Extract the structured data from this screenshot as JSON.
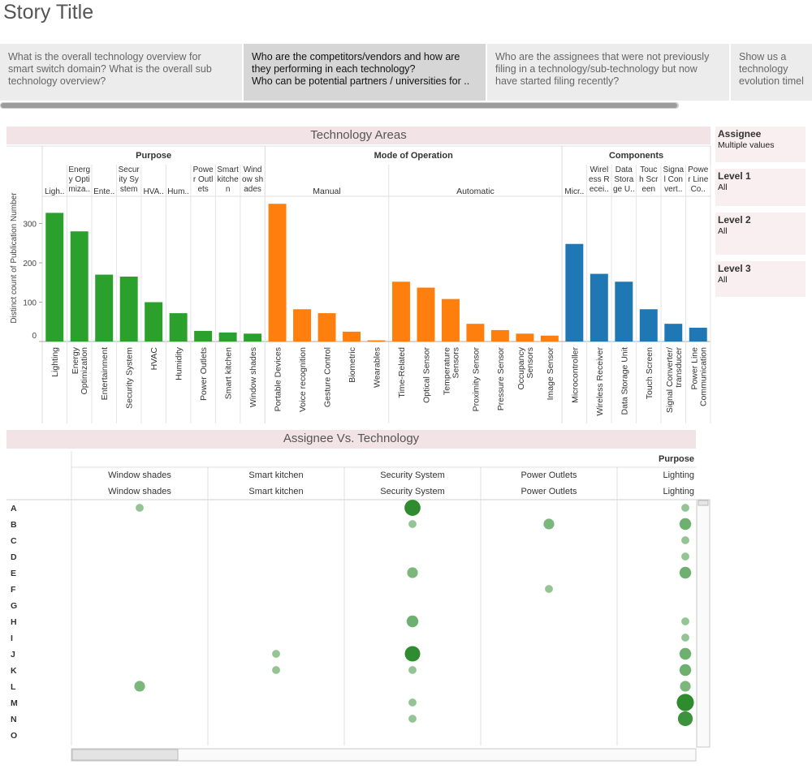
{
  "story": {
    "title": "Story Title"
  },
  "tabs": [
    {
      "lines": [
        "What is the overall technology overview for",
        "smart switch domain? What is the overall sub",
        "technology overview?"
      ],
      "active": false
    },
    {
      "lines": [
        "Who are the competitors/vendors and how are",
        "they performing in each technology?",
        "Who can be potential partners / universities for .."
      ],
      "active": true
    },
    {
      "lines": [
        "Who are the assignees that were not previously",
        "filing in a technology/sub-technology but now",
        "have started filing recently?"
      ],
      "active": false
    },
    {
      "lines": [
        "Show us a",
        "technology",
        "evolution timel.."
      ],
      "active": false
    }
  ],
  "filters": [
    {
      "title": "Assignee",
      "value": "Multiple values"
    },
    {
      "title": "Level 1",
      "value": "All"
    },
    {
      "title": "Level 2",
      "value": "All"
    },
    {
      "title": "Level 3",
      "value": "All"
    }
  ],
  "tech_chart": {
    "section_title": "Technology Areas",
    "ylabel": "Distinct count of Publication Number",
    "yticks": [
      0,
      100,
      200,
      300
    ],
    "colors": {
      "Purpose": "#2ca02c",
      "Mode of Operation": "#ff7f0e",
      "Components": "#1f77b4"
    },
    "groups": [
      "Purpose",
      "Mode of Operation",
      "Components"
    ],
    "subgroups": [
      "Manual",
      "Automatic"
    ]
  },
  "chart_data": {
    "type": "bar",
    "title": "Technology Areas",
    "ylabel": "Distinct count of Publication Number",
    "ylim": [
      0,
      360
    ],
    "categories": [
      {
        "group": "Purpose",
        "sub": "",
        "header": [
          "Ligh.."
        ],
        "label": [
          "Lighting"
        ],
        "value": 327
      },
      {
        "group": "Purpose",
        "sub": "",
        "header": [
          "Energ",
          "y Opti",
          "miza.."
        ],
        "label": [
          "Energy",
          "Optimization"
        ],
        "value": 280
      },
      {
        "group": "Purpose",
        "sub": "",
        "header": [
          "Ente.."
        ],
        "label": [
          "Entertainment"
        ],
        "value": 170
      },
      {
        "group": "Purpose",
        "sub": "",
        "header": [
          "Secur",
          "ity Sy",
          "stem"
        ],
        "label": [
          "Security System"
        ],
        "value": 165
      },
      {
        "group": "Purpose",
        "sub": "",
        "header": [
          "HVA.."
        ],
        "label": [
          "HVAC"
        ],
        "value": 100
      },
      {
        "group": "Purpose",
        "sub": "",
        "header": [
          "Hum.."
        ],
        "label": [
          "Humidity"
        ],
        "value": 72
      },
      {
        "group": "Purpose",
        "sub": "",
        "header": [
          "Powe",
          "r Outl",
          "ets"
        ],
        "label": [
          "Power Outlets"
        ],
        "value": 27
      },
      {
        "group": "Purpose",
        "sub": "",
        "header": [
          "Smart",
          "kitche",
          "n"
        ],
        "label": [
          "Smart kitchen"
        ],
        "value": 23
      },
      {
        "group": "Purpose",
        "sub": "",
        "header": [
          "Wind",
          "ow sh",
          "ades"
        ],
        "label": [
          "Window shades"
        ],
        "value": 20
      },
      {
        "group": "Mode of Operation",
        "sub": "Manual",
        "header": [],
        "label": [
          "Portable Devices"
        ],
        "value": 350
      },
      {
        "group": "Mode of Operation",
        "sub": "Manual",
        "header": [],
        "label": [
          "Voice recognition"
        ],
        "value": 82
      },
      {
        "group": "Mode of Operation",
        "sub": "Manual",
        "header": [],
        "label": [
          "Gesture Control"
        ],
        "value": 72
      },
      {
        "group": "Mode of Operation",
        "sub": "Manual",
        "header": [],
        "label": [
          "Biometric"
        ],
        "value": 25
      },
      {
        "group": "Mode of Operation",
        "sub": "Manual",
        "header": [],
        "label": [
          "Wearables"
        ],
        "value": 3
      },
      {
        "group": "Mode of Operation",
        "sub": "Automatic",
        "header": [],
        "label": [
          "Time-Related"
        ],
        "value": 152
      },
      {
        "group": "Mode of Operation",
        "sub": "Automatic",
        "header": [],
        "label": [
          "Optical Sensor"
        ],
        "value": 137
      },
      {
        "group": "Mode of Operation",
        "sub": "Automatic",
        "header": [],
        "label": [
          "Temperature",
          "Sensors"
        ],
        "value": 108
      },
      {
        "group": "Mode of Operation",
        "sub": "Automatic",
        "header": [],
        "label": [
          "Proximity Sensor"
        ],
        "value": 45
      },
      {
        "group": "Mode of Operation",
        "sub": "Automatic",
        "header": [],
        "label": [
          "Pressure Sensor"
        ],
        "value": 29
      },
      {
        "group": "Mode of Operation",
        "sub": "Automatic",
        "header": [],
        "label": [
          "Occupancy",
          "Sensors"
        ],
        "value": 20
      },
      {
        "group": "Mode of Operation",
        "sub": "Automatic",
        "header": [],
        "label": [
          "Image Sensor"
        ],
        "value": 15
      },
      {
        "group": "Components",
        "sub": "",
        "header": [
          "Micr.."
        ],
        "label": [
          "Microcontroller"
        ],
        "value": 248
      },
      {
        "group": "Components",
        "sub": "",
        "header": [
          "Wirel",
          "ess R",
          "ecei.."
        ],
        "label": [
          "Wireless Receiver"
        ],
        "value": 172
      },
      {
        "group": "Components",
        "sub": "",
        "header": [
          "Data",
          "Stora",
          "ge U.."
        ],
        "label": [
          "Data Storage Unit"
        ],
        "value": 152
      },
      {
        "group": "Components",
        "sub": "",
        "header": [
          "Touc",
          "h Scr",
          "een"
        ],
        "label": [
          "Touch Screen"
        ],
        "value": 82
      },
      {
        "group": "Components",
        "sub": "",
        "header": [
          "Signa",
          "l Con",
          "vert.."
        ],
        "label": [
          "Signal Converter/",
          "transducer"
        ],
        "value": 45
      },
      {
        "group": "Components",
        "sub": "",
        "header": [
          "Powe",
          "r Line",
          "Co.."
        ],
        "label": [
          "Power Line",
          "Communication"
        ],
        "value": 35
      }
    ]
  },
  "assignee_chart": {
    "section_title": "Assignee Vs. Technology",
    "group_label": "Purpose",
    "columns": [
      "Window shades",
      "Smart kitchen",
      "Security System",
      "Power Outlets",
      "Lighting"
    ],
    "rows": [
      "A",
      "B",
      "C",
      "D",
      "E",
      "F",
      "G",
      "H",
      "I",
      "J",
      "K",
      "L",
      "M",
      "N",
      "O"
    ],
    "bubble_data": [
      {
        "row": "A",
        "col": "Window shades",
        "v": 1
      },
      {
        "row": "A",
        "col": "Security System",
        "v": 10
      },
      {
        "row": "A",
        "col": "Lighting",
        "v": 1
      },
      {
        "row": "B",
        "col": "Security System",
        "v": 1
      },
      {
        "row": "B",
        "col": "Power Outlets",
        "v": 3
      },
      {
        "row": "B",
        "col": "Lighting",
        "v": 4
      },
      {
        "row": "C",
        "col": "Lighting",
        "v": 1
      },
      {
        "row": "D",
        "col": "Lighting",
        "v": 1
      },
      {
        "row": "E",
        "col": "Security System",
        "v": 3
      },
      {
        "row": "E",
        "col": "Lighting",
        "v": 4
      },
      {
        "row": "F",
        "col": "Power Outlets",
        "v": 1
      },
      {
        "row": "H",
        "col": "Security System",
        "v": 4
      },
      {
        "row": "H",
        "col": "Lighting",
        "v": 1
      },
      {
        "row": "I",
        "col": "Lighting",
        "v": 1
      },
      {
        "row": "J",
        "col": "Smart kitchen",
        "v": 1
      },
      {
        "row": "J",
        "col": "Security System",
        "v": 9
      },
      {
        "row": "J",
        "col": "Lighting",
        "v": 4
      },
      {
        "row": "K",
        "col": "Smart kitchen",
        "v": 1
      },
      {
        "row": "K",
        "col": "Security System",
        "v": 1
      },
      {
        "row": "K",
        "col": "Lighting",
        "v": 4
      },
      {
        "row": "L",
        "col": "Window shades",
        "v": 3
      },
      {
        "row": "L",
        "col": "Lighting",
        "v": 3
      },
      {
        "row": "M",
        "col": "Security System",
        "v": 1
      },
      {
        "row": "M",
        "col": "Lighting",
        "v": 12
      },
      {
        "row": "N",
        "col": "Security System",
        "v": 1
      },
      {
        "row": "N",
        "col": "Lighting",
        "v": 8
      }
    ]
  }
}
